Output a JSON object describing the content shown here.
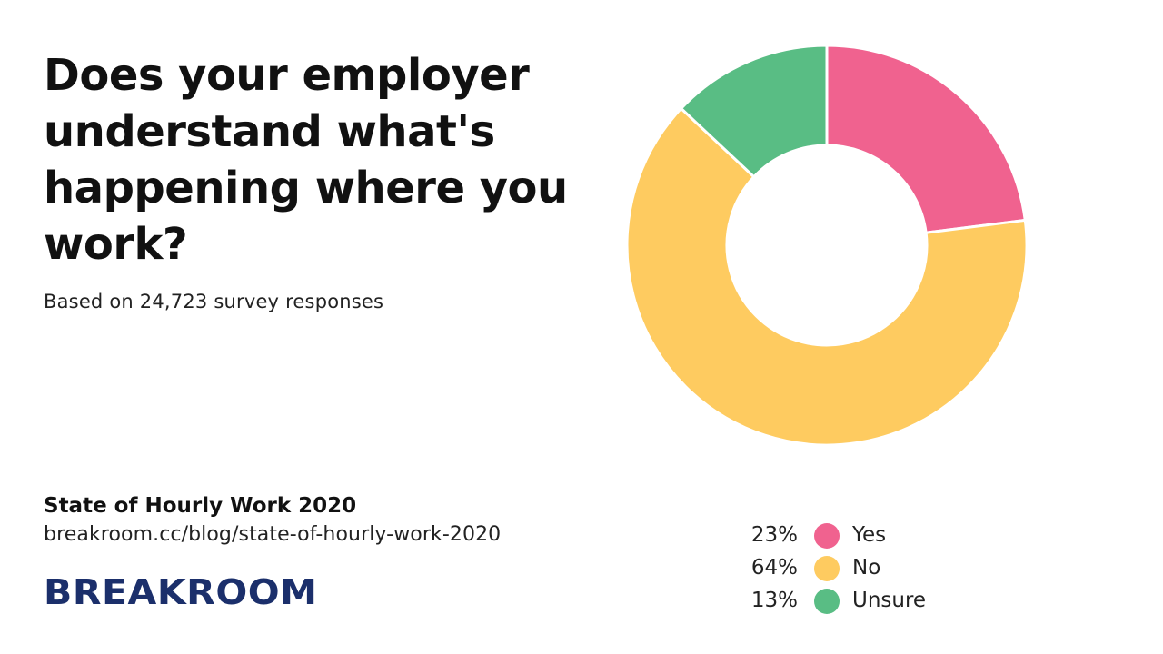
{
  "chart_data": {
    "type": "pie",
    "title": "Does your employer understand what's happening where you work?",
    "subtitle": "Based on 24,723 survey responses",
    "categories": [
      "Yes",
      "No",
      "Unsure"
    ],
    "values": [
      23,
      64,
      13
    ],
    "value_labels": [
      "23%",
      "64%",
      "13%"
    ],
    "colors": [
      "#f0628f",
      "#fecb60",
      "#59bd84"
    ],
    "donut": true,
    "legend_position": "bottom-right"
  },
  "source": {
    "title": "State of Hourly Work 2020",
    "url": "breakroom.cc/blog/state-of-hourly-work-2020"
  },
  "brand": {
    "logo_text": "BREAKROOM",
    "logo_color": "#1b2f6b"
  }
}
